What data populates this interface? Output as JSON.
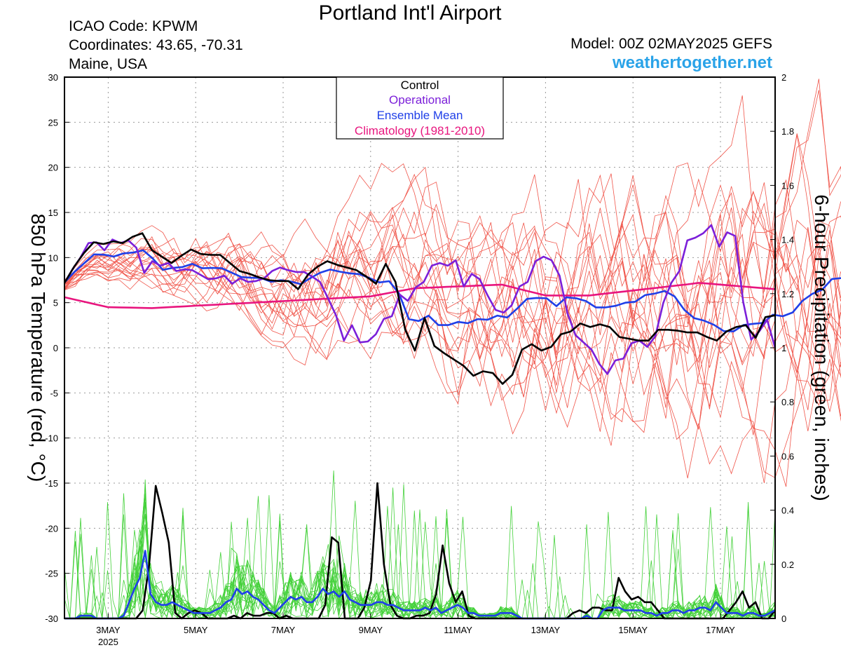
{
  "header": {
    "title": "Portland Int'l Airport",
    "icao": "ICAO Code: KPWM",
    "coordinates": "Coordinates: 43.65, -70.31",
    "region": "Maine, USA",
    "model": "Model: 00Z 02MAY2025 GEFS",
    "site": "weathertogether.net"
  },
  "colors": {
    "control": "#000000",
    "operational": "#7b1fd9",
    "ensemble_mean": "#1f3fe8",
    "climatology": "#e8157e",
    "ensemble_temp": "#f0554a",
    "ensemble_precip": "#44d13a",
    "site": "#2aa3e8"
  },
  "chart_data": {
    "type": "line",
    "title": "Portland Int'l Airport",
    "ylabel": "850 hPa Temperature (red, °C)",
    "y2label": "6-hour Precipitation (green, inches)",
    "ylim": [
      -30,
      30
    ],
    "y2lim": [
      0,
      2
    ],
    "yticks": [
      "30",
      "25",
      "20",
      "15",
      "10",
      "5",
      "0",
      "-5",
      "-10",
      "-15",
      "-20",
      "-25",
      "-30"
    ],
    "y2ticks": [
      "2",
      "1.8",
      "1.6",
      "1.4",
      "1.2",
      "1",
      "0.8",
      "0.6",
      "0.4",
      "0.2",
      "0"
    ],
    "xlim_days": [
      2.0,
      18.25
    ],
    "xticks": [
      {
        "day": 3,
        "label": "3MAY",
        "sub": "2025"
      },
      {
        "day": 5,
        "label": "5MAY",
        "sub": ""
      },
      {
        "day": 7,
        "label": "7MAY",
        "sub": ""
      },
      {
        "day": 9,
        "label": "9MAY",
        "sub": ""
      },
      {
        "day": 11,
        "label": "11MAY",
        "sub": ""
      },
      {
        "day": 13,
        "label": "13MAY",
        "sub": ""
      },
      {
        "day": 15,
        "label": "15MAY",
        "sub": ""
      },
      {
        "day": 17,
        "label": "17MAY",
        "sub": ""
      }
    ],
    "grid": true,
    "legend_placement": "top-center",
    "legend": [
      "Control",
      "Operational",
      "Ensemble Mean",
      "Climatology (1981-2010)"
    ],
    "step_days": 0.25,
    "temperature": {
      "control": [
        7.2,
        9,
        10.5,
        11.7,
        11.5,
        11.8,
        11.6,
        12.3,
        12.7,
        10.8,
        10.1,
        9.4,
        10.2,
        10.9,
        10.4,
        10.3,
        10.3,
        9.4,
        8.5,
        8.2,
        7.8,
        7.5,
        7.4,
        7.4,
        6.5,
        8.1,
        9,
        9.6,
        9.2,
        8.9,
        8.6,
        7.9,
        7.1,
        9.3,
        7.3,
        2,
        -0.3,
        3.3,
        0.2,
        -0.6,
        -1.3,
        -2,
        -3.1,
        -2.6,
        -2.8,
        -4,
        -3,
        -0.2,
        0.4,
        -0.3,
        0.1,
        1.5,
        1.8,
        2.7,
        2.3,
        2.6,
        2.3,
        1.2,
        1,
        0.8,
        0.8,
        2,
        2,
        1.9,
        1.7,
        1.7,
        1.2,
        0.8,
        1.8,
        2.3,
        2.5,
        1.1,
        3.4,
        3.6
      ],
      "operational": [
        7.2,
        8.7,
        10,
        11.6,
        11.7,
        10.8,
        12,
        11.6,
        11.9,
        11.1,
        8.3,
        9.6,
        9.1,
        9.4,
        8.5,
        8.7,
        8.6,
        8.1,
        7.6,
        7.7,
        8,
        7.1,
        7.7,
        7.3,
        7.4,
        7.7,
        8.5,
        8.9,
        8.6,
        8.4,
        8.4,
        7.9,
        7.3,
        5.5,
        3.6,
        0.8,
        2.5,
        0.6,
        0.7,
        1.5,
        3.2,
        3.5,
        5.9,
        5.2,
        6.7,
        7.3,
        9.1,
        9.4,
        9.1,
        9.7,
        6.8,
        8.2,
        7.6,
        5.8,
        4.2,
        3.9,
        4.7,
        6.8,
        7.3,
        9.6,
        10.1,
        9.7,
        8,
        3.8,
        1.4,
        0.6,
        -0.2,
        -1.8,
        -2.9,
        -1.4,
        -1.2,
        0.5,
        0.8,
        0.1,
        1.3,
        5,
        7.2,
        8.5,
        11.9,
        12.2,
        12.7,
        13.6,
        11.2,
        12.8,
        12.4,
        5.1,
        0.9,
        1.8,
        3.1,
        0
      ]
    },
    "precipitation": {
      "control": [
        0,
        0,
        0,
        0,
        0,
        0,
        0,
        0,
        0,
        0,
        0,
        0,
        0.03,
        0.2,
        0.49,
        0.39,
        0.28,
        0.02,
        0,
        0.02,
        0.03,
        0.02,
        0,
        0,
        0,
        0,
        0.01,
        0,
        0.02,
        0.01,
        0.01,
        0.02,
        0.02,
        0,
        0.01,
        0,
        0,
        0,
        0,
        0,
        0.05,
        0.3,
        0.28,
        0,
        0,
        0,
        0.04,
        0.14,
        0.5,
        0.2,
        0.05,
        0.01,
        0,
        0,
        0.01,
        0.01,
        0.02,
        0.09,
        0.27,
        0.13,
        0.06,
        0.1,
        0.01,
        0,
        0,
        0,
        0,
        0,
        0,
        0,
        0,
        0,
        0,
        0,
        0,
        0,
        0,
        0,
        0.02,
        0.03,
        0.02,
        0.04,
        0.04,
        0.03,
        0.03,
        0.15,
        0.1,
        0.07,
        0.08,
        0.06,
        0.06,
        0.03,
        0,
        0,
        0,
        0,
        0,
        0,
        0,
        0,
        0,
        0,
        0.03,
        0.06,
        0.1,
        0.04,
        0.06,
        0,
        0,
        0.03,
        0.06,
        0.1
      ],
      "ensemble_mean": [
        0,
        0,
        0,
        0.01,
        0.01,
        0.01,
        0,
        0,
        0,
        0,
        0,
        0.01,
        0.06,
        0.11,
        0.15,
        0.25,
        0.09,
        0.06,
        0.05,
        0.05,
        0.06,
        0.05,
        0.04,
        0.03,
        0.02,
        0.02,
        0.02,
        0.02,
        0.03,
        0.04,
        0.06,
        0.07,
        0.11,
        0.09,
        0.1,
        0.08,
        0.07,
        0.05,
        0.03,
        0.02,
        0.04,
        0.06,
        0.08,
        0.07,
        0.08,
        0.06,
        0.06,
        0.08,
        0.11,
        0.09,
        0.1,
        0.08,
        0.1,
        0.07,
        0.06,
        0.05,
        0.05,
        0.05,
        0.06,
        0.06,
        0.05,
        0.05,
        0.04,
        0.03,
        0.03,
        0.03,
        0.03,
        0.04,
        0.03,
        0.04,
        0.02,
        0.03,
        0.04,
        0.05,
        0.04,
        0.02,
        0.02,
        0.01,
        0.01,
        0.01,
        0.01,
        0.02,
        0.02,
        0.02,
        0.01,
        0,
        0,
        0,
        0,
        0,
        0,
        0,
        0,
        0,
        0,
        0,
        0,
        0.01,
        0,
        0,
        0.03,
        0.04,
        0.04,
        0.04,
        0.03,
        0.03,
        0.03,
        0.03,
        0.02,
        0.02,
        0.01,
        0.02,
        0.02,
        0.03,
        0.03,
        0.02,
        0.03,
        0.03,
        0.04,
        0.04,
        0.03,
        0.06,
        0.04,
        0.02,
        0.02,
        0.02,
        0.01,
        0.02,
        0.02,
        0.01,
        0.01,
        0.02,
        0.03
      ]
    }
  }
}
